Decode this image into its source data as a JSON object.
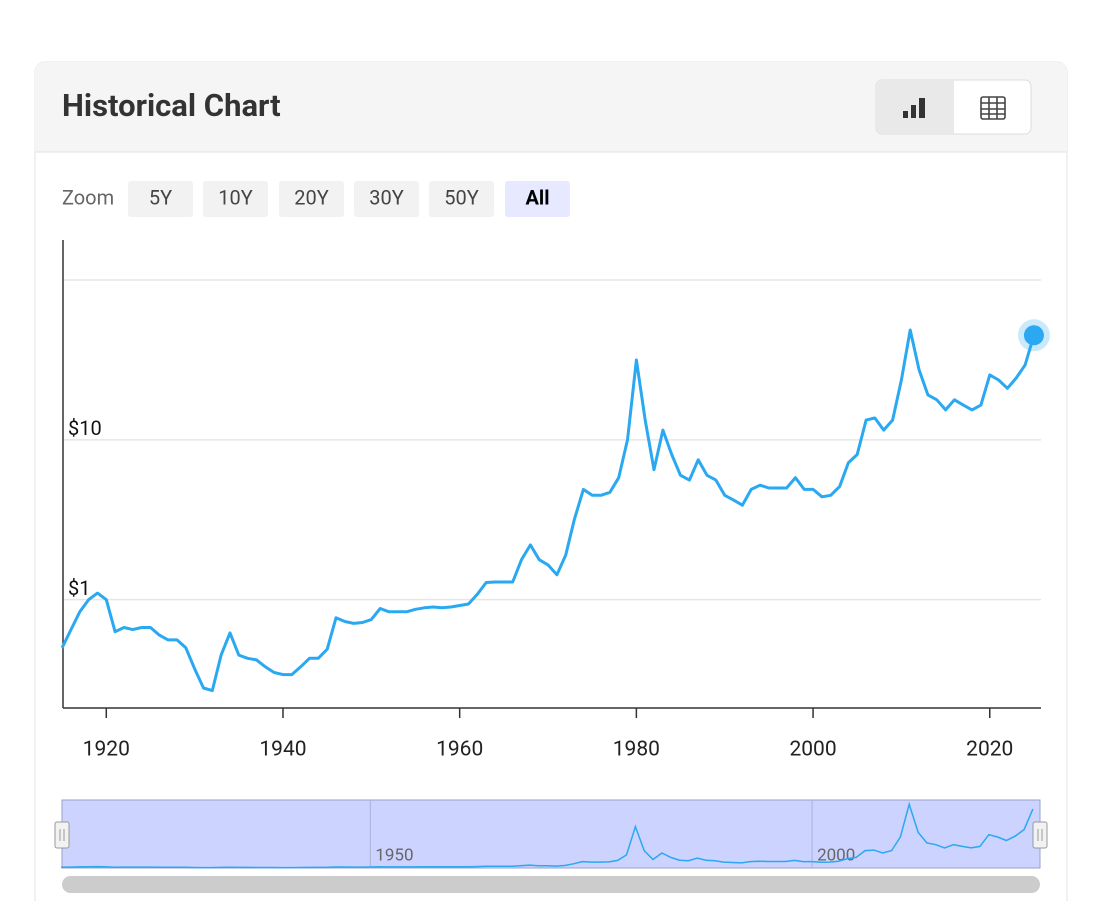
{
  "ui": {
    "title": "Historical Chart",
    "zoom": {
      "label": "Zoom",
      "options": [
        "5Y",
        "10Y",
        "20Y",
        "30Y",
        "50Y",
        "All"
      ],
      "selected_index": 5
    }
  },
  "chart_data": {
    "type": "line",
    "log_scale": true,
    "grid": true,
    "color": "#2aa8f2",
    "x": [
      1915,
      1916,
      1917,
      1918,
      1919,
      1920,
      1921,
      1922,
      1923,
      1924,
      1925,
      1926,
      1927,
      1928,
      1929,
      1930,
      1931,
      1932,
      1933,
      1934,
      1935,
      1936,
      1937,
      1938,
      1939,
      1940,
      1941,
      1942,
      1943,
      1944,
      1945,
      1946,
      1947,
      1948,
      1949,
      1950,
      1951,
      1952,
      1953,
      1954,
      1955,
      1956,
      1957,
      1958,
      1959,
      1960,
      1961,
      1962,
      1963,
      1964,
      1965,
      1966,
      1967,
      1968,
      1969,
      1970,
      1971,
      1972,
      1973,
      1974,
      1975,
      1976,
      1977,
      1978,
      1979,
      1980,
      1981,
      1982,
      1983,
      1984,
      1985,
      1986,
      1987,
      1988,
      1989,
      1990,
      1991,
      1992,
      1993,
      1994,
      1995,
      1996,
      1997,
      1998,
      1999,
      2000,
      2001,
      2002,
      2003,
      2004,
      2005,
      2006,
      2007,
      2008,
      2009,
      2010,
      2011,
      2012,
      2013,
      2014,
      2015,
      2016,
      2017,
      2018,
      2019,
      2020,
      2021,
      2022,
      2023,
      2024,
      2025
    ],
    "values": [
      0.5,
      0.65,
      0.84,
      1.0,
      1.1,
      1.0,
      0.63,
      0.67,
      0.65,
      0.67,
      0.67,
      0.6,
      0.56,
      0.56,
      0.5,
      0.37,
      0.28,
      0.27,
      0.45,
      0.62,
      0.45,
      0.43,
      0.42,
      0.38,
      0.35,
      0.34,
      0.34,
      0.38,
      0.43,
      0.43,
      0.49,
      0.77,
      0.73,
      0.71,
      0.72,
      0.75,
      0.88,
      0.84,
      0.84,
      0.84,
      0.87,
      0.89,
      0.9,
      0.89,
      0.9,
      0.92,
      0.94,
      1.08,
      1.28,
      1.29,
      1.29,
      1.29,
      1.78,
      2.2,
      1.78,
      1.65,
      1.43,
      1.9,
      3.2,
      4.9,
      4.5,
      4.5,
      4.7,
      5.8,
      10,
      31.6,
      13.3,
      6.5,
      11.5,
      8.1,
      6.0,
      5.6,
      7.5,
      6.0,
      5.6,
      4.5,
      4.2,
      3.9,
      4.9,
      5.2,
      5.0,
      5.0,
      5.0,
      5.8,
      4.9,
      4.9,
      4.4,
      4.5,
      5.1,
      7.2,
      8.1,
      13.3,
      13.7,
      11.5,
      13.3,
      23.7,
      48.7,
      27.4,
      19.1,
      17.8,
      15.4,
      17.8,
      16.5,
      15.4,
      16.5,
      25.5,
      23.7,
      21,
      24.4,
      29.4,
      45.1
    ],
    "xlim": [
      1915.1,
      2025.8
    ],
    "xticks": [
      1920,
      1940,
      1960,
      1980,
      2000,
      2020
    ],
    "ylim": [
      0.21,
      178
    ],
    "yticks": [
      {
        "value": 1,
        "label": "$1"
      },
      {
        "value": 10,
        "label": "$10"
      },
      {
        "value": 100,
        "label": null
      }
    ],
    "navigator": {
      "xticks": [
        1950,
        2000
      ],
      "ylim": [
        0,
        52
      ]
    }
  }
}
